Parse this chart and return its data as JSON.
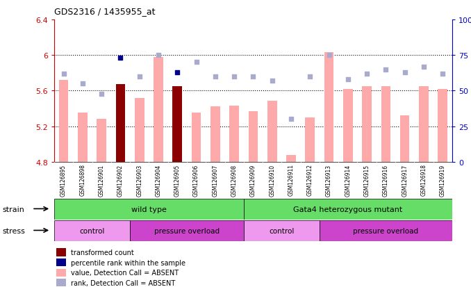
{
  "title": "GDS2316 / 1435955_at",
  "samples": [
    "GSM126895",
    "GSM126898",
    "GSM126901",
    "GSM126902",
    "GSM126903",
    "GSM126904",
    "GSM126905",
    "GSM126906",
    "GSM126907",
    "GSM126908",
    "GSM126909",
    "GSM126910",
    "GSM126911",
    "GSM126912",
    "GSM126913",
    "GSM126914",
    "GSM126915",
    "GSM126916",
    "GSM126917",
    "GSM126918",
    "GSM126919"
  ],
  "bar_values": [
    5.72,
    5.35,
    5.28,
    5.67,
    5.52,
    5.98,
    5.65,
    5.35,
    5.42,
    5.43,
    5.37,
    5.49,
    4.88,
    5.3,
    6.03,
    5.62,
    5.65,
    5.65,
    5.32,
    5.65,
    5.62
  ],
  "rank_values": [
    62,
    55,
    48,
    73,
    60,
    75,
    63,
    70,
    60,
    60,
    60,
    57,
    30,
    60,
    75,
    58,
    62,
    65,
    63,
    67,
    62
  ],
  "highlighted_bars": [
    3,
    6
  ],
  "highlighted_ranks": [
    3,
    6
  ],
  "ylim_left": [
    4.8,
    6.4
  ],
  "ylim_right": [
    0,
    100
  ],
  "yticks_left": [
    4.8,
    5.2,
    5.6,
    6.0,
    6.4
  ],
  "yticks_right": [
    0,
    25,
    50,
    75,
    100
  ],
  "ytick_labels_left": [
    "4.8",
    "5.2",
    "5.6",
    "6",
    "6.4"
  ],
  "ytick_labels_right": [
    "0",
    "25",
    "50",
    "75",
    "100%"
  ],
  "left_color": "#cc0000",
  "right_color": "#0000cc",
  "bar_pink": "#ffaaaa",
  "bar_red": "#8b0000",
  "rank_light_blue": "#aaaacc",
  "rank_dark_blue": "#00008b",
  "stress_groups": [
    {
      "label": "control",
      "start": 0,
      "end": 4,
      "color": "#ee88ee"
    },
    {
      "label": "pressure overload",
      "start": 4,
      "end": 10,
      "color": "#cc44cc"
    },
    {
      "label": "control",
      "start": 10,
      "end": 14,
      "color": "#ee88ee"
    },
    {
      "label": "pressure overload",
      "start": 14,
      "end": 21,
      "color": "#cc44cc"
    }
  ],
  "legend_labels": [
    "transformed count",
    "percentile rank within the sample",
    "value, Detection Call = ABSENT",
    "rank, Detection Call = ABSENT"
  ],
  "legend_colors": [
    "#8b0000",
    "#00008b",
    "#ffaaaa",
    "#aaaacc"
  ],
  "background_color": "#ffffff",
  "gray_bg": "#d3d3d3"
}
